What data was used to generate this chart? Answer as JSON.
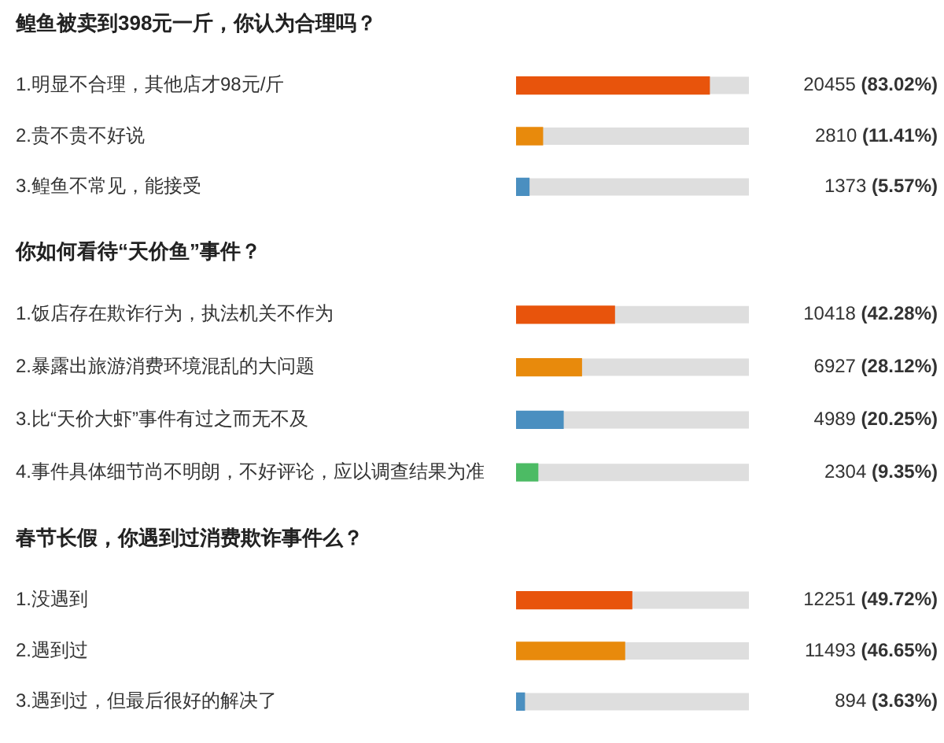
{
  "chart_data": [
    {
      "type": "bar",
      "orientation": "horizontal",
      "title": "鳇鱼被卖到398元一斤，你认为合理吗？",
      "categories": [
        "1.明显不合理，其他店才98元/斤",
        "2.贵不贵不好说",
        "3.鳇鱼不常见，能接受"
      ],
      "values": [
        83.02,
        11.41,
        5.57
      ],
      "colors": [
        "#e8540c",
        "#e88a0c",
        "#4a8fc0"
      ],
      "xlim": [
        0,
        100
      ],
      "tick_labels": "y",
      "value_labels": [
        "20455 (83.02%)",
        "2810 (11.41%)",
        "1373 (5.57%)"
      ]
    },
    {
      "type": "bar",
      "orientation": "horizontal",
      "title": "你如何看待“天价鱼”事件？",
      "categories": [
        "1.饭店存在欺诈行为，执法机关不作为",
        "2.暴露出旅游消费环境混乱的大问题",
        "3.比“天价大虾”事件有过之而无不及",
        "4.事件具体细节尚不明朗，不好评论，应以调查结果为准"
      ],
      "values": [
        42.28,
        28.12,
        20.25,
        9.35
      ],
      "colors": [
        "#e8540c",
        "#e88a0c",
        "#4a8fc0",
        "#4cbb64"
      ],
      "xlim": [
        0,
        100
      ],
      "tick_labels": "y",
      "value_labels": [
        "10418 (42.28%)",
        "6927 (28.12%)",
        "4989 (20.25%)",
        "2304 (9.35%)"
      ]
    },
    {
      "type": "bar",
      "orientation": "horizontal",
      "title": "春节长假，你遇到过消费欺诈事件么？",
      "categories": [
        "1.没遇到",
        "2.遇到过",
        "3.遇到过，但最后很好的解决了"
      ],
      "values": [
        49.72,
        46.65,
        3.63
      ],
      "colors": [
        "#e8540c",
        "#e88a0c",
        "#4a8fc0"
      ],
      "xlim": [
        0,
        100
      ],
      "tick_labels": "y",
      "value_labels": [
        "12251 (49.72%)",
        "11493 (46.65%)",
        "894 (3.63%)"
      ]
    }
  ]
}
